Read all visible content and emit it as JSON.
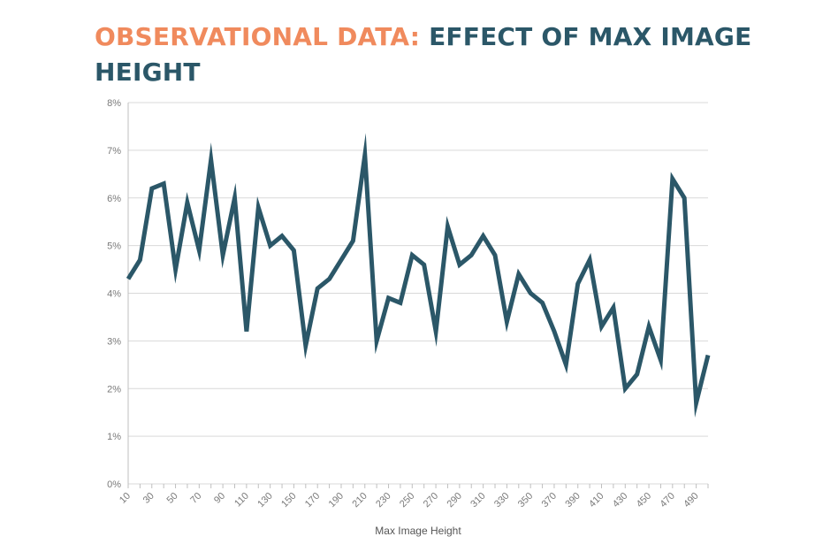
{
  "header": {
    "title_part1": "OBSERVATIONAL DATA:",
    "title_part2": "EFFECT OF MAX IMAGE HEIGHT"
  },
  "colors": {
    "title_accent": "#f08a5d",
    "title_main": "#2b5768",
    "line": "#2b5768",
    "grid": "#d9d9d9"
  },
  "chart_data": {
    "type": "line",
    "title": "OBSERVATIONAL DATA: EFFECT OF MAX IMAGE HEIGHT",
    "xlabel": "Max Image Height",
    "ylabel": "",
    "x": [
      10,
      20,
      30,
      40,
      50,
      60,
      70,
      80,
      90,
      100,
      110,
      120,
      130,
      140,
      150,
      160,
      170,
      180,
      190,
      200,
      210,
      220,
      230,
      240,
      250,
      260,
      270,
      280,
      290,
      300,
      310,
      320,
      330,
      340,
      350,
      360,
      370,
      380,
      390,
      400,
      410,
      420,
      430,
      440,
      450,
      460,
      470,
      480,
      490,
      500
    ],
    "x_tick_labels": [
      "10",
      "30",
      "50",
      "70",
      "90",
      "110",
      "130",
      "150",
      "170",
      "190",
      "210",
      "230",
      "250",
      "270",
      "290",
      "310",
      "330",
      "350",
      "370",
      "390",
      "410",
      "430",
      "450",
      "470",
      "490"
    ],
    "y_tick_labels": [
      "0%",
      "1%",
      "2%",
      "3%",
      "4%",
      "5%",
      "6%",
      "7%",
      "8%"
    ],
    "ylim": [
      0,
      8
    ],
    "grid": true,
    "series": [
      {
        "values": [
          4.3,
          4.7,
          6.2,
          6.3,
          4.5,
          5.9,
          4.9,
          6.8,
          4.8,
          6.0,
          3.2,
          5.8,
          5.0,
          5.2,
          4.9,
          2.9,
          4.1,
          4.3,
          4.7,
          5.1,
          6.9,
          3.0,
          3.9,
          3.8,
          4.8,
          4.6,
          3.2,
          5.4,
          4.6,
          4.8,
          5.2,
          4.8,
          3.4,
          4.4,
          4.0,
          3.8,
          3.2,
          2.5,
          4.2,
          4.7,
          3.3,
          3.7,
          2.0,
          2.3,
          3.3,
          2.6,
          6.4,
          6.0,
          1.7,
          2.7
        ]
      }
    ]
  }
}
